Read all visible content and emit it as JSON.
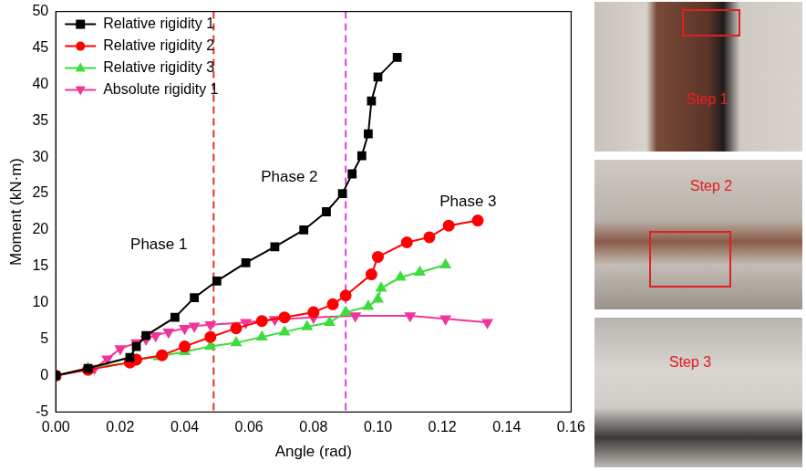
{
  "chart_data": {
    "type": "line",
    "x_label": "Angle (rad)",
    "y_label": "Moment (kN·m)",
    "xlim": [
      0,
      0.16
    ],
    "xticks": [
      {
        "value": 0,
        "label": "0.00"
      },
      {
        "value": 0.02,
        "label": "0.02"
      },
      {
        "value": 0.04,
        "label": "0.04"
      },
      {
        "value": 0.06,
        "label": "0.06"
      },
      {
        "value": 0.08,
        "label": "0.08"
      },
      {
        "value": 0.1,
        "label": "0.10"
      },
      {
        "value": 0.12,
        "label": "0.12"
      },
      {
        "value": 0.14,
        "label": "0.14"
      },
      {
        "value": 0.16,
        "label": "0.16"
      }
    ],
    "ylim": [
      -5,
      50
    ],
    "yticks": [
      -5,
      0,
      5,
      10,
      15,
      20,
      25,
      30,
      35,
      40,
      45,
      50
    ],
    "grid": false,
    "legend": "top-left",
    "series": [
      {
        "name": "Relative rigidity 1",
        "color": "#000000",
        "marker": "square",
        "x": [
          0,
          0.01,
          0.023,
          0.025,
          0.028,
          0.037,
          0.043,
          0.05,
          0.059,
          0.068,
          0.077,
          0.084,
          0.089,
          0.092,
          0.095,
          0.097,
          0.098,
          0.1,
          0.106
        ],
        "values": [
          0,
          1,
          2.5,
          4,
          5.5,
          8,
          10.7,
          13,
          15.5,
          17.7,
          20,
          22.5,
          25,
          27.7,
          30.2,
          33.2,
          37.7,
          41,
          43.7
        ]
      },
      {
        "name": "Relative rigidity 2",
        "color": "#ff0000",
        "marker": "circle",
        "x": [
          0,
          0.01,
          0.023,
          0.025,
          0.033,
          0.04,
          0.048,
          0.056,
          0.064,
          0.071,
          0.08,
          0.086,
          0.09,
          0.098,
          0.1,
          0.109,
          0.116,
          0.122,
          0.131
        ],
        "values": [
          0,
          0.8,
          1.8,
          2.2,
          2.8,
          4,
          5.3,
          6.5,
          7.5,
          8,
          8.7,
          9.8,
          11,
          13.9,
          16.3,
          18.3,
          19,
          20.6,
          21.3
        ]
      },
      {
        "name": "Relative rigidity 3",
        "color": "#3ddc3d",
        "marker": "triangle",
        "x": [
          0,
          0.01,
          0.023,
          0.025,
          0.032,
          0.04,
          0.048,
          0.056,
          0.064,
          0.071,
          0.078,
          0.085,
          0.09,
          0.097,
          0.1,
          0.101,
          0.107,
          0.113,
          0.121
        ],
        "values": [
          0,
          1,
          1.8,
          2.2,
          2.6,
          3.3,
          4,
          4.5,
          5.3,
          6,
          6.7,
          7.3,
          8.7,
          9.5,
          10.5,
          12,
          13.5,
          14.2,
          15.2
        ]
      },
      {
        "name": "Absolute rigidity 1",
        "color": "#f0359a",
        "marker": "triangle-down",
        "x": [
          0,
          0.012,
          0.016,
          0.02,
          0.025,
          0.028,
          0.031,
          0.035,
          0.04,
          0.043,
          0.048,
          0.059,
          0.068,
          0.08,
          0.093,
          0.11,
          0.121,
          0.134
        ],
        "values": [
          0,
          1,
          2.3,
          3.7,
          4.5,
          5,
          5.5,
          6,
          6.5,
          6.8,
          7,
          7.3,
          7.7,
          8,
          8.2,
          8.2,
          7.8,
          7.3
        ]
      }
    ],
    "vlines": [
      {
        "x": 0.049,
        "color": "#e8302e",
        "line_style": "dashed"
      },
      {
        "x": 0.09,
        "color": "#e040e0",
        "line_style": "dashed"
      }
    ],
    "annotations": [
      {
        "text": "Phase 1",
        "x": 0.032,
        "y": 18
      },
      {
        "text": "Phase 2",
        "x": 0.0725,
        "y": 27.2
      },
      {
        "text": "Phase 3",
        "x": 0.128,
        "y": 23.8
      }
    ]
  },
  "photos": [
    "Step 1",
    "Step 2",
    "Step 3"
  ]
}
